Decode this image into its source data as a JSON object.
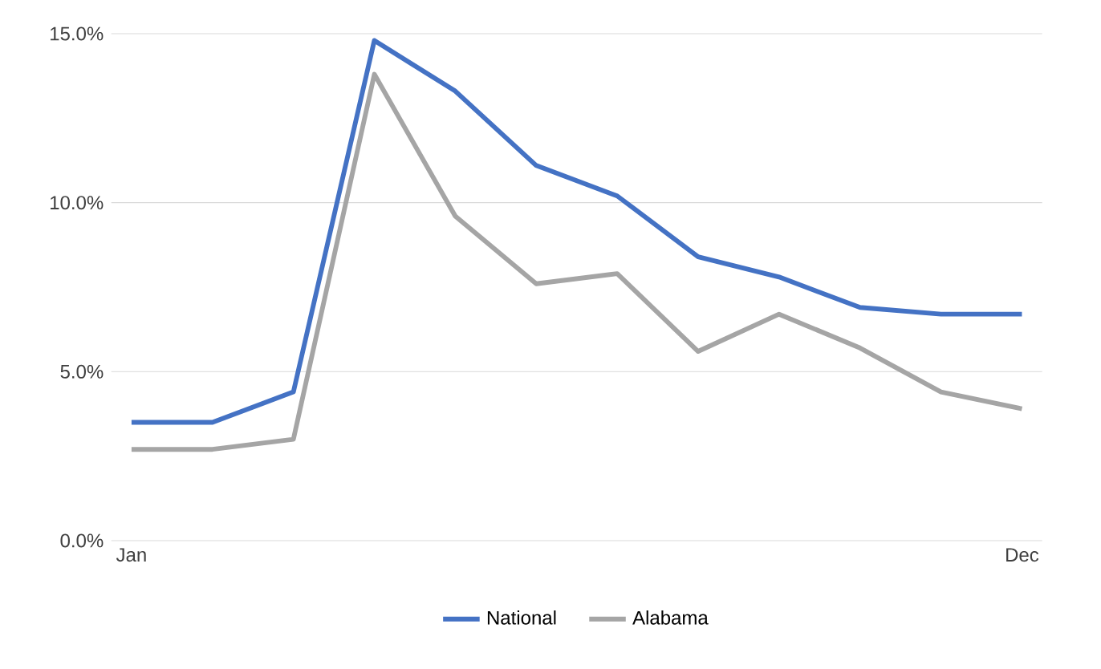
{
  "chart_data": {
    "type": "line",
    "categories": [
      "Jan",
      null,
      null,
      null,
      null,
      null,
      null,
      null,
      null,
      null,
      null,
      "Dec"
    ],
    "series": [
      {
        "name": "National",
        "color": "#4472c4",
        "values": [
          3.5,
          3.5,
          4.4,
          14.8,
          13.3,
          11.1,
          10.2,
          8.4,
          7.8,
          6.9,
          6.7,
          6.7
        ]
      },
      {
        "name": "Alabama",
        "color": "#a5a5a5",
        "values": [
          2.7,
          2.7,
          3.0,
          13.8,
          9.6,
          7.6,
          7.9,
          5.6,
          6.7,
          5.7,
          4.4,
          3.9
        ]
      }
    ],
    "ylim": [
      0,
      15
    ],
    "yticks": [
      {
        "value": 0,
        "label": "0.0%"
      },
      {
        "value": 5,
        "label": "5.0%"
      },
      {
        "value": 10,
        "label": "10.0%"
      },
      {
        "value": 15,
        "label": "15.0%"
      }
    ],
    "grid": "y",
    "legend": "bottom",
    "marker": "none",
    "line_style": "solid"
  }
}
